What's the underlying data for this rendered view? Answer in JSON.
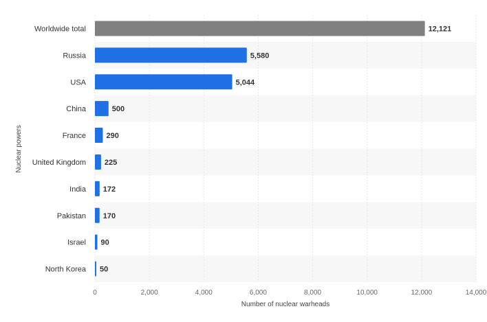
{
  "chart_data": {
    "type": "bar",
    "orientation": "horizontal",
    "xlabel": "Number of nuclear warheads",
    "ylabel": "Nuclear powers",
    "categories": [
      "Worldwide total",
      "Russia",
      "USA",
      "China",
      "France",
      "United Kingdom",
      "India",
      "Pakistan",
      "Israel",
      "North Korea"
    ],
    "values": [
      12121,
      5580,
      5044,
      500,
      290,
      225,
      172,
      170,
      90,
      50
    ],
    "value_labels": [
      "12,121",
      "5,580",
      "5,044",
      "500",
      "290",
      "225",
      "172",
      "170",
      "90",
      "50"
    ],
    "xlim": [
      0,
      14000
    ],
    "xticks": [
      0,
      2000,
      4000,
      6000,
      8000,
      10000,
      12000,
      14000
    ],
    "xtick_labels": [
      "0",
      "2,000",
      "4,000",
      "6,000",
      "8,000",
      "10,000",
      "12,000",
      "14,000"
    ],
    "grid": "vertical",
    "legend": "none",
    "colors": {
      "total": "#808080",
      "country": "#1f6fe5"
    }
  }
}
